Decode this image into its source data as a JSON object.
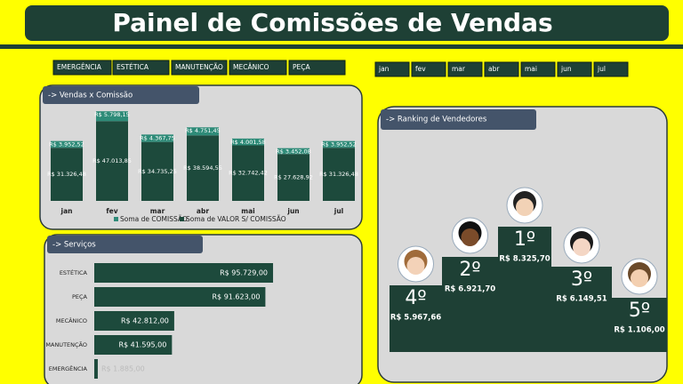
{
  "header": {
    "title": "Painel de Comissões de Vendas"
  },
  "service_filters": [
    "EMERGÊNCIA",
    "ESTÉTICA",
    "MANUTENÇÃO",
    "MECÂNICO",
    "PEÇA"
  ],
  "month_filters": [
    "jan",
    "fev",
    "mar",
    "abr",
    "mai",
    "jun",
    "jul"
  ],
  "chart_data": [
    {
      "type": "stacked_bar",
      "title": "-> Vendas x Comissão",
      "categories": [
        "jan",
        "fev",
        "mar",
        "abr",
        "mai",
        "jun",
        "jul"
      ],
      "ylim": [
        0,
        55000
      ],
      "series": [
        {
          "name": "Soma de COMISSÃO",
          "color": "#2e8b78",
          "values": [
            3952.52,
            5798.15,
            4367.75,
            4751.45,
            4001.58,
            3452.08,
            3952.52
          ],
          "value_labels": [
            "R$ 3.952,52",
            "R$ 5.798,15",
            "R$ 4.367,75",
            "R$ 4.751,45",
            "R$ 4.001,58",
            "R$ 3.452,08",
            "R$ 3.952,52"
          ]
        },
        {
          "name": "Soma de VALOR S/ COMISSÃO",
          "color": "#1d4a3c",
          "values": [
            31326.48,
            47013.85,
            34735.25,
            38594.55,
            32742.42,
            27628.92,
            31326.48
          ],
          "value_labels": [
            "R$ 31.326,48",
            "R$ 47.013,85",
            "R$ 34.735,25",
            "R$ 38.594,55",
            "R$ 32.742,42",
            "R$ 27.628,92",
            "R$ 31.326,48"
          ]
        }
      ]
    },
    {
      "type": "barh",
      "title": "-> Serviços",
      "categories": [
        "ESTÉTICA",
        "PEÇA",
        "MECÂNICO",
        "MANUTENÇÃO",
        "EMERGÊNCIA"
      ],
      "values": [
        95729,
        91623,
        42812,
        41595,
        1885
      ],
      "value_labels": [
        "R$ 95.729,00",
        "R$ 91.623,00",
        "R$ 42.812,00",
        "R$ 41.595,00",
        "R$ 1.885,00"
      ],
      "color": "#1d4a3c",
      "xlim": [
        0,
        100000
      ]
    }
  ],
  "ranking": {
    "title": "-> Ranking de Vendedores",
    "places": [
      {
        "position": "1º",
        "value": "R$ 8.325,70"
      },
      {
        "position": "2º",
        "value": "R$ 6.921,70"
      },
      {
        "position": "3º",
        "value": "R$ 6.149,51"
      },
      {
        "position": "4º",
        "value": "R$ 5.967,66"
      },
      {
        "position": "5º",
        "value": "R$ 1.106,00"
      }
    ]
  }
}
